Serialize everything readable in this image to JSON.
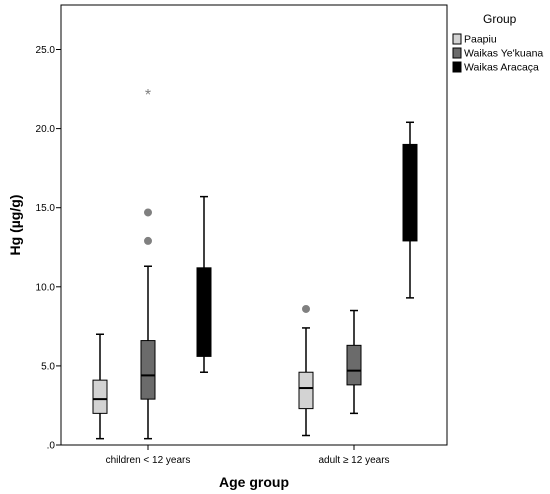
{
  "chart_data": {
    "type": "boxplot",
    "xlabel": "Age group",
    "ylabel": "Hg (µg/g)",
    "ylim": [
      0,
      27.5
    ],
    "yticks": [
      0,
      5,
      10,
      15,
      20,
      25
    ],
    "ytick_labels": [
      ".0",
      "5.0",
      "10.0",
      "15.0",
      "20.0",
      "25.0"
    ],
    "grid": false,
    "legend": {
      "title": "Group",
      "placement": "top-right"
    },
    "categories": [
      "children < 12 years",
      "adult ≥ 12 years"
    ],
    "series": [
      {
        "name": "Paapiu",
        "color": "#d3d3d3",
        "boxes": [
          {
            "whisker_low": 0.4,
            "q1": 2.0,
            "median": 2.9,
            "q3": 4.1,
            "whisker_high": 7.0,
            "outliers": [],
            "extremes": []
          },
          {
            "whisker_low": 0.6,
            "q1": 2.3,
            "median": 3.6,
            "q3": 4.6,
            "whisker_high": 7.4,
            "outliers": [
              8.6
            ],
            "extremes": []
          }
        ]
      },
      {
        "name": "Waikas Ye'kuana",
        "color": "#6b6b6b",
        "boxes": [
          {
            "whisker_low": 0.4,
            "q1": 2.9,
            "median": 4.4,
            "q3": 6.6,
            "whisker_high": 11.3,
            "outliers": [
              12.9,
              14.7
            ],
            "extremes": [
              22.2
            ]
          },
          {
            "whisker_low": 2.0,
            "q1": 3.8,
            "median": 4.7,
            "q3": 6.3,
            "whisker_high": 8.5,
            "outliers": [],
            "extremes": []
          }
        ]
      },
      {
        "name": "Waikas Aracaça",
        "color": "#000000",
        "boxes": [
          {
            "whisker_low": 4.6,
            "q1": 5.6,
            "median": 8.6,
            "q3": 11.2,
            "whisker_high": 15.7,
            "outliers": [],
            "extremes": []
          },
          {
            "whisker_low": 9.3,
            "q1": 12.9,
            "median": 15.2,
            "q3": 19.0,
            "whisker_high": 20.4,
            "outliers": [],
            "extremes": []
          }
        ]
      }
    ]
  }
}
